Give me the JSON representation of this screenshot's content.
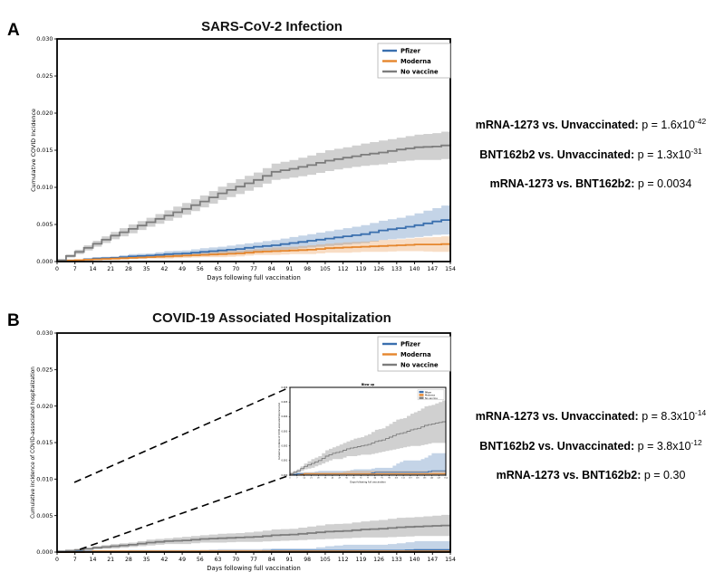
{
  "colors": {
    "pfizer": "#3a6fae",
    "moderna": "#e5862d",
    "no_vaccine": "#7c7c7c",
    "pfizer_band": "rgba(58,111,174,0.30)",
    "moderna_band": "rgba(229,134,45,0.28)",
    "no_vaccine_band": "rgba(120,120,120,0.35)",
    "axis": "#000000",
    "background": "#ffffff"
  },
  "panels": [
    {
      "label": "A",
      "title": "SARS-CoV-2 Infection",
      "legend": [
        "Pfizer",
        "Moderna",
        "No vaccine"
      ],
      "annotations": [
        {
          "comparison": "mRNA-1273 vs. Unvaccinated:",
          "pvalue": " p = 1.6x10",
          "exponent": "-42"
        },
        {
          "comparison": "BNT162b2 vs. Unvaccinated:",
          "pvalue": " p = 1.3x10",
          "exponent": "-31"
        },
        {
          "comparison": "mRNA-1273 vs. BNT162b2:",
          "pvalue": " p = 0.0034",
          "exponent": ""
        }
      ]
    },
    {
      "label": "B",
      "title": "COVID-19 Associated Hospitalization",
      "legend": [
        "Pfizer",
        "Moderna",
        "No vaccine"
      ],
      "annotations": [
        {
          "comparison": "mRNA-1273 vs. Unvaccinated:",
          "pvalue": " p = 8.3x10",
          "exponent": "-14"
        },
        {
          "comparison": "BNT162b2 vs. Unvaccinated:",
          "pvalue": " p = 3.8x10",
          "exponent": "-12"
        },
        {
          "comparison": "mRNA-1273 vs. BNT162b2:",
          "pvalue": " p = 0.30",
          "exponent": ""
        }
      ],
      "inset": {
        "title": "Blow up",
        "ylim": [
          0,
          0.006
        ]
      }
    }
  ],
  "chart_data": [
    {
      "type": "line",
      "subtype": "cumulative-incidence-step-curves-with-ci-bands",
      "title": "SARS-CoV-2 Infection",
      "xlabel": "Days following full vaccination",
      "ylabel": "Cumulative COVID Incidence",
      "xlim": [
        0,
        154
      ],
      "ylim": [
        0,
        0.03
      ],
      "ytick_step": 0.005,
      "legend_position": "upper right",
      "x": [
        0,
        7,
        14,
        21,
        28,
        35,
        42,
        49,
        56,
        63,
        70,
        77,
        84,
        91,
        98,
        105,
        112,
        119,
        126,
        133,
        140,
        147,
        154
      ],
      "series": [
        {
          "name": "Pfizer",
          "color": "pfizer",
          "values": [
            0.0001,
            0.0002,
            0.0004,
            0.0005,
            0.0007,
            0.0008,
            0.001,
            0.0011,
            0.0013,
            0.0015,
            0.0017,
            0.002,
            0.0022,
            0.0025,
            0.0028,
            0.0031,
            0.0034,
            0.0037,
            0.0042,
            0.0045,
            0.0049,
            0.0054,
            0.0058
          ],
          "upper": [
            0.0002,
            0.0003,
            0.0006,
            0.0007,
            0.001,
            0.0011,
            0.0014,
            0.0015,
            0.0018,
            0.002,
            0.0023,
            0.0026,
            0.0029,
            0.0033,
            0.0037,
            0.0041,
            0.0045,
            0.0049,
            0.0055,
            0.0059,
            0.0065,
            0.0072,
            0.0079
          ],
          "lower": [
            0.0,
            0.0001,
            0.0002,
            0.0003,
            0.0004,
            0.0005,
            0.0006,
            0.0007,
            0.0008,
            0.001,
            0.0011,
            0.0014,
            0.0015,
            0.0017,
            0.0019,
            0.0021,
            0.0023,
            0.0025,
            0.0029,
            0.0031,
            0.0033,
            0.0036,
            0.0037
          ]
        },
        {
          "name": "Moderna",
          "color": "moderna",
          "values": [
            0.0001,
            0.0002,
            0.0003,
            0.0004,
            0.0005,
            0.0006,
            0.0007,
            0.0008,
            0.0009,
            0.001,
            0.0011,
            0.0013,
            0.0014,
            0.0015,
            0.0016,
            0.0018,
            0.0019,
            0.002,
            0.0021,
            0.0022,
            0.0023,
            0.0023,
            0.0024
          ],
          "upper": [
            0.0002,
            0.0003,
            0.0004,
            0.0006,
            0.0007,
            0.0008,
            0.001,
            0.0011,
            0.0012,
            0.0014,
            0.0015,
            0.0017,
            0.0019,
            0.002,
            0.0022,
            0.0024,
            0.0026,
            0.0027,
            0.0029,
            0.003,
            0.0032,
            0.0033,
            0.0035
          ],
          "lower": [
            0.0,
            0.0001,
            0.0002,
            0.0002,
            0.0003,
            0.0004,
            0.0004,
            0.0005,
            0.0006,
            0.0006,
            0.0007,
            0.0009,
            0.0009,
            0.001,
            0.001,
            0.0012,
            0.0012,
            0.0013,
            0.0013,
            0.0014,
            0.0014,
            0.0013,
            0.0013
          ]
        },
        {
          "name": "No vaccine",
          "color": "no_vaccine",
          "values": [
            0.0002,
            0.0013,
            0.0024,
            0.0035,
            0.0044,
            0.0053,
            0.0062,
            0.0071,
            0.0081,
            0.0092,
            0.0101,
            0.011,
            0.0121,
            0.0125,
            0.013,
            0.0136,
            0.014,
            0.0144,
            0.0147,
            0.0151,
            0.0154,
            0.0155,
            0.0158
          ],
          "upper": [
            0.0003,
            0.0016,
            0.0028,
            0.004,
            0.005,
            0.0059,
            0.0069,
            0.0079,
            0.0089,
            0.0101,
            0.0111,
            0.012,
            0.0132,
            0.0137,
            0.0143,
            0.015,
            0.0154,
            0.0159,
            0.0163,
            0.0167,
            0.0171,
            0.0173,
            0.0177
          ],
          "lower": [
            0.0001,
            0.001,
            0.002,
            0.003,
            0.0038,
            0.0047,
            0.0055,
            0.0063,
            0.0073,
            0.0083,
            0.0091,
            0.01,
            0.011,
            0.0113,
            0.0117,
            0.0122,
            0.0126,
            0.0129,
            0.0131,
            0.0135,
            0.0137,
            0.0137,
            0.0139
          ]
        }
      ]
    },
    {
      "type": "line",
      "subtype": "cumulative-incidence-step-curves-with-ci-bands",
      "title": "COVID-19 Associated Hospitalization",
      "xlabel": "Days following full vaccination",
      "ylabel": "Cumulative incidence of COVID-associated hospitalization",
      "xlim": [
        0,
        154
      ],
      "ylim": [
        0,
        0.03
      ],
      "ytick_step": 0.005,
      "legend_position": "upper right",
      "inset_note": "magnified inset of same series, ylim 0-0.006",
      "x": [
        0,
        7,
        14,
        21,
        28,
        35,
        42,
        49,
        56,
        63,
        70,
        77,
        84,
        91,
        98,
        105,
        112,
        119,
        126,
        133,
        140,
        147,
        154
      ],
      "series": [
        {
          "name": "Pfizer",
          "color": "pfizer",
          "values": [
            0.0,
            0.0001,
            0.0001,
            0.0001,
            0.0001,
            0.0001,
            0.0001,
            0.0001,
            0.0001,
            0.0001,
            0.0001,
            0.0001,
            0.0002,
            0.0002,
            0.0002,
            0.0002,
            0.0002,
            0.0002,
            0.0002,
            0.0002,
            0.0003,
            0.0003,
            0.0003
          ],
          "upper": [
            0.0001,
            0.0002,
            0.0002,
            0.0002,
            0.0003,
            0.0003,
            0.0003,
            0.0003,
            0.0003,
            0.0004,
            0.0004,
            0.0004,
            0.0005,
            0.0005,
            0.0005,
            0.0008,
            0.001,
            0.001,
            0.001,
            0.0012,
            0.0015,
            0.0015,
            0.0015
          ],
          "lower": [
            0.0,
            0.0,
            0.0,
            0.0,
            0.0,
            0.0,
            0.0,
            0.0,
            0.0,
            0.0,
            0.0,
            0.0,
            0.0,
            0.0,
            0.0,
            0.0,
            0.0,
            0.0,
            0.0,
            0.0,
            0.0,
            0.0,
            0.0
          ]
        },
        {
          "name": "Moderna",
          "color": "moderna",
          "values": [
            0.0,
            0.0,
            0.0001,
            0.0001,
            0.0001,
            0.0001,
            0.0001,
            0.0001,
            0.0001,
            0.0001,
            0.0001,
            0.0001,
            0.0001,
            0.0001,
            0.0001,
            0.0001,
            0.0001,
            0.0001,
            0.0001,
            0.0001,
            0.0001,
            0.0001,
            0.0001
          ],
          "upper": [
            0.0001,
            0.0001,
            0.0002,
            0.0002,
            0.0002,
            0.0002,
            0.0002,
            0.0002,
            0.0003,
            0.0003,
            0.0003,
            0.0003,
            0.0003,
            0.0003,
            0.0003,
            0.0003,
            0.0003,
            0.0003,
            0.0003,
            0.0003,
            0.0003,
            0.0003,
            0.0003
          ],
          "lower": [
            0.0,
            0.0,
            0.0,
            0.0,
            0.0,
            0.0,
            0.0,
            0.0,
            0.0,
            0.0,
            0.0,
            0.0,
            0.0,
            0.0,
            0.0,
            0.0,
            0.0,
            0.0,
            0.0,
            0.0,
            0.0,
            0.0,
            0.0
          ]
        },
        {
          "name": "No vaccine",
          "color": "no_vaccine",
          "values": [
            0.0001,
            0.0003,
            0.0006,
            0.0008,
            0.001,
            0.0013,
            0.0015,
            0.0016,
            0.0018,
            0.0019,
            0.002,
            0.0021,
            0.0023,
            0.0024,
            0.0026,
            0.0028,
            0.0029,
            0.0031,
            0.0032,
            0.0034,
            0.0035,
            0.0036,
            0.0037
          ],
          "upper": [
            0.0002,
            0.0004,
            0.0008,
            0.0011,
            0.0013,
            0.0017,
            0.0019,
            0.0021,
            0.0023,
            0.0025,
            0.0026,
            0.0028,
            0.0031,
            0.0032,
            0.0035,
            0.0038,
            0.0039,
            0.0042,
            0.0044,
            0.0047,
            0.0048,
            0.005,
            0.0052
          ],
          "lower": [
            0.0,
            0.0002,
            0.0004,
            0.0005,
            0.0007,
            0.0009,
            0.0011,
            0.0011,
            0.0013,
            0.0013,
            0.0014,
            0.0014,
            0.0015,
            0.0016,
            0.0017,
            0.0018,
            0.0019,
            0.002,
            0.002,
            0.0021,
            0.0022,
            0.0022,
            0.0022
          ]
        }
      ]
    }
  ]
}
